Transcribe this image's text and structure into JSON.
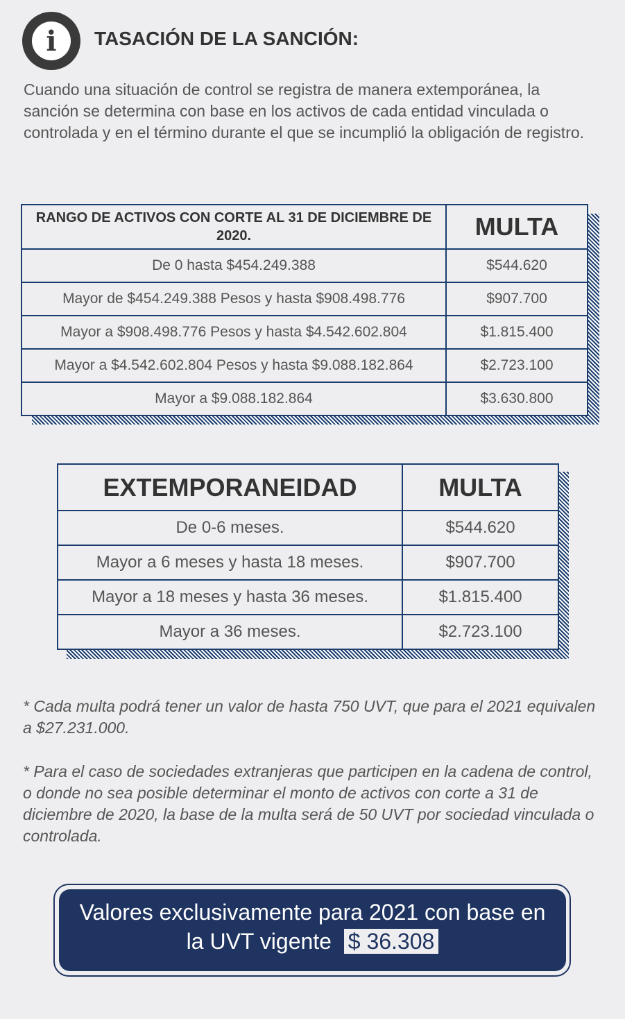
{
  "header": {
    "icon": "info-icon",
    "title": "TASACIÓN DE LA SANCIÓN:"
  },
  "intro": "Cuando una situación de control se registra de manera extemporánea, la sanción se determina con base en los activos de cada entidad vinculada o controlada y en el término durante el que se incumplió la obligación de registro.",
  "table1": {
    "headers": [
      "RANGO DE ACTIVOS CON CORTE AL 31 DE DICIEMBRE DE 2020.",
      "MULTA"
    ],
    "rows": [
      [
        "De 0 hasta $454.249.388",
        "$544.620"
      ],
      [
        "Mayor de $454.249.388 Pesos y hasta $908.498.776",
        "$907.700"
      ],
      [
        "Mayor a $908.498.776 Pesos y hasta $4.542.602.804",
        "$1.815.400"
      ],
      [
        "Mayor a $4.542.602.804 Pesos y hasta $9.088.182.864",
        "$2.723.100"
      ],
      [
        "Mayor a $9.088.182.864",
        "$3.630.800"
      ]
    ]
  },
  "table2": {
    "headers": [
      "EXTEMPORANEIDAD",
      "MULTA"
    ],
    "rows": [
      [
        "De 0-6 meses.",
        "$544.620"
      ],
      [
        "Mayor a 6 meses y hasta 18 meses.",
        "$907.700"
      ],
      [
        "Mayor a 18 meses y hasta 36 meses.",
        "$1.815.400"
      ],
      [
        "Mayor a 36 meses.",
        "$2.723.100"
      ]
    ]
  },
  "notes": [
    "* Cada multa podrá tener un valor de hasta 750 UVT, que para el 2021 equivalen a $27.231.000.",
    "* Para el caso de sociedades extranjeras que participen en la cadena de control, o donde no sea posible determinar el monto de activos con corte a 31 de diciembre de 2020, la base de la multa será de 50 UVT por sociedad vinculada o controlada."
  ],
  "banner": {
    "line1": "Valores exclusivamente para 2021 con base en",
    "line2": "la UVT vigente",
    "uvt": "$ 36.308"
  },
  "colors": {
    "navy": "#1f3461",
    "border": "#1b3d6e",
    "background": "#eeeef0"
  }
}
